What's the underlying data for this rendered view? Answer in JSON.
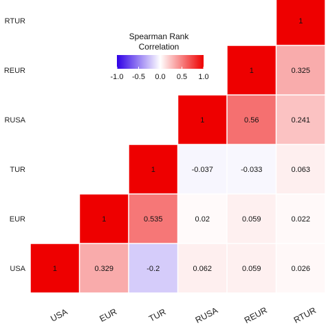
{
  "chart_data": {
    "type": "heatmap",
    "title": "",
    "variables": [
      "USA",
      "EUR",
      "TUR",
      "RUSA",
      "REUR",
      "RTUR"
    ],
    "x_tick_labels": [
      "USA",
      "EUR",
      "TUR",
      "RUSA",
      "REUR",
      "RTUR"
    ],
    "y_tick_labels_visible": [
      "USA",
      "EUR",
      "TUR",
      "RUSA",
      "REUR",
      "RTUR"
    ],
    "matrix_upper_triangle": [
      {
        "row": "USA",
        "col": "USA",
        "value": 1,
        "label": "1"
      },
      {
        "row": "USA",
        "col": "EUR",
        "value": 0.329,
        "label": "0.329"
      },
      {
        "row": "USA",
        "col": "TUR",
        "value": -0.2,
        "label": "-0.2"
      },
      {
        "row": "USA",
        "col": "RUSA",
        "value": 0.062,
        "label": "0.062"
      },
      {
        "row": "USA",
        "col": "REUR",
        "value": 0.059,
        "label": "0.059"
      },
      {
        "row": "USA",
        "col": "RTUR",
        "value": 0.026,
        "label": "0.026"
      },
      {
        "row": "EUR",
        "col": "EUR",
        "value": 1,
        "label": "1"
      },
      {
        "row": "EUR",
        "col": "TUR",
        "value": 0.535,
        "label": "0.535"
      },
      {
        "row": "EUR",
        "col": "RUSA",
        "value": 0.02,
        "label": "0.02"
      },
      {
        "row": "EUR",
        "col": "REUR",
        "value": 0.059,
        "label": "0.059"
      },
      {
        "row": "EUR",
        "col": "RTUR",
        "value": 0.022,
        "label": "0.022"
      },
      {
        "row": "TUR",
        "col": "TUR",
        "value": 1,
        "label": "1"
      },
      {
        "row": "TUR",
        "col": "RUSA",
        "value": -0.037,
        "label": "-0.037"
      },
      {
        "row": "TUR",
        "col": "REUR",
        "value": -0.033,
        "label": "-0.033"
      },
      {
        "row": "TUR",
        "col": "RTUR",
        "value": 0.063,
        "label": "0.063"
      },
      {
        "row": "RUSA",
        "col": "RUSA",
        "value": 1,
        "label": "1"
      },
      {
        "row": "RUSA",
        "col": "REUR",
        "value": 0.56,
        "label": "0.56"
      },
      {
        "row": "RUSA",
        "col": "RTUR",
        "value": 0.241,
        "label": "0.241"
      },
      {
        "row": "REUR",
        "col": "REUR",
        "value": 1,
        "label": "1"
      },
      {
        "row": "REUR",
        "col": "RTUR",
        "value": 0.325,
        "label": "0.325"
      },
      {
        "row": "RTUR",
        "col": "RTUR",
        "value": 1,
        "label": "1"
      }
    ],
    "legend": {
      "title_line1": "Spearman Rank",
      "title_line2": "Correlation",
      "ticks": [
        "-1.0",
        "-0.5",
        "0.0",
        "0.5",
        "1.0"
      ],
      "range": [
        -1,
        1
      ],
      "placement": "top-left"
    },
    "colors": {
      "low": "#2f00e6",
      "mid": "#ffffff",
      "high": "#ee0000"
    }
  }
}
